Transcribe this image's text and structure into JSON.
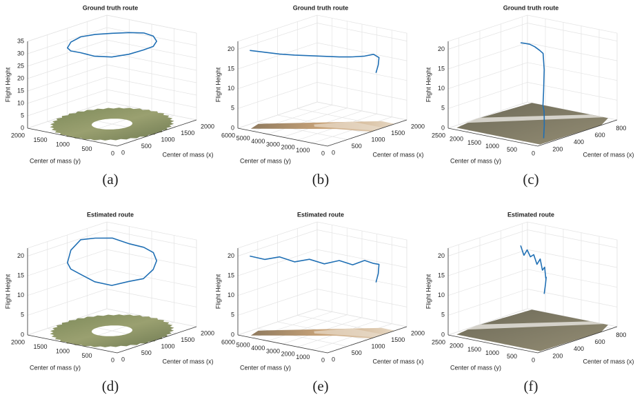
{
  "chart_data": [
    {
      "type": "line3d",
      "title": "Ground truth route",
      "caption": "(a)",
      "xlabel": "Center of mass (x)",
      "ylabel": "Center of mass (y)",
      "zlabel": "Flight Height",
      "color": "#1f6fb4",
      "grid": true,
      "xlim": [
        0,
        2000
      ],
      "xticks": [
        0,
        500,
        1000,
        1500,
        2000
      ],
      "ylim": [
        0,
        2000
      ],
      "yticks": [
        0,
        500,
        1000,
        1500,
        2000
      ],
      "zlim": [
        0,
        35
      ],
      "zticks": [
        0,
        5,
        10,
        15,
        20,
        25,
        30,
        35
      ],
      "x": [
        1800,
        1739,
        1566,
        1306,
        1000,
        694,
        434,
        261,
        200,
        261,
        434,
        694,
        1000,
        1306,
        1566,
        1739,
        1800
      ],
      "y": [
        1000,
        1268,
        1495,
        1647,
        1700,
        1647,
        1495,
        1268,
        1000,
        732,
        505,
        353,
        300,
        353,
        505,
        732,
        1000
      ],
      "z": [
        32.5,
        32.0,
        31.8,
        32.2,
        32.6,
        32.3,
        31.9,
        32.4,
        33.0,
        32.2,
        31.8,
        32.1,
        32.4,
        32.0,
        32.2,
        32.5,
        32.5
      ]
    },
    {
      "type": "line3d",
      "title": "Ground truth route",
      "caption": "(b)",
      "xlabel": "Center of mass (x)",
      "ylabel": "Center of mass (y)",
      "zlabel": "Flight Height",
      "color": "#1f6fb4",
      "grid": true,
      "xlim": [
        0,
        2000
      ],
      "xticks": [
        0,
        500,
        1000,
        1500,
        2000
      ],
      "ylim": [
        0,
        6000
      ],
      "yticks": [
        0,
        1000,
        2000,
        3000,
        4000,
        5000,
        6000
      ],
      "zlim": [
        0,
        22
      ],
      "zticks": [
        0,
        5,
        10,
        15,
        20
      ],
      "x": [
        150,
        300,
        450,
        600,
        750,
        900,
        1050,
        1200,
        1350,
        1500,
        1600,
        1620,
        1600
      ],
      "y": [
        5600,
        5000,
        4400,
        3800,
        3200,
        2600,
        2000,
        1500,
        1100,
        900,
        800,
        900,
        1000
      ],
      "z": [
        19.5,
        19,
        18.5,
        18.2,
        18,
        17.8,
        17.6,
        17.5,
        17.5,
        17.6,
        16.5,
        14.5,
        12.5
      ]
    },
    {
      "type": "line3d",
      "title": "Ground truth route",
      "caption": "(c)",
      "xlabel": "Center of mass (x)",
      "ylabel": "Center of mass (y)",
      "zlabel": "Flight Height",
      "color": "#1f6fb4",
      "grid": true,
      "xlim": [
        100,
        850
      ],
      "xticks": [
        200,
        400,
        600,
        800
      ],
      "ylim": [
        0,
        2500
      ],
      "yticks": [
        0,
        500,
        1000,
        1500,
        2000,
        2500
      ],
      "zlim": [
        0,
        22
      ],
      "zticks": [
        0,
        5,
        10,
        15,
        20
      ],
      "x": [
        650,
        620,
        600,
        580,
        560,
        540,
        500,
        460,
        420,
        380,
        330,
        280,
        240
      ],
      "y": [
        2100,
        1900,
        1700,
        1500,
        1300,
        1150,
        1000,
        900,
        800,
        650,
        500,
        350,
        250
      ],
      "z": [
        17.5,
        18,
        18.3,
        18.2,
        17.8,
        17.5,
        14,
        9,
        6,
        5.2,
        4.5,
        3,
        0.3
      ]
    },
    {
      "type": "line3d",
      "title": "Estimated route",
      "caption": "(d)",
      "xlabel": "Center of mass (x)",
      "ylabel": "Center of mass (y)",
      "zlabel": "Flight Height",
      "color": "#1f6fb4",
      "grid": true,
      "xlim": [
        0,
        2000
      ],
      "xticks": [
        0,
        500,
        1000,
        1500,
        2000
      ],
      "ylim": [
        0,
        2000
      ],
      "yticks": [
        0,
        500,
        1000,
        1500,
        2000
      ],
      "zlim": [
        0,
        22
      ],
      "zticks": [
        0,
        5,
        10,
        15,
        20
      ],
      "x": [
        1800,
        1739,
        1566,
        1306,
        1000,
        694,
        434,
        261,
        200,
        261,
        434,
        694,
        1000,
        1306,
        1566,
        1739,
        1800
      ],
      "y": [
        1000,
        1268,
        1495,
        1647,
        1700,
        1647,
        1495,
        1268,
        1000,
        732,
        505,
        353,
        300,
        353,
        505,
        732,
        1000
      ],
      "z": [
        18.5,
        19,
        20.5,
        21,
        21.5,
        20,
        18,
        17.5,
        17,
        15.5,
        14.5,
        15,
        14.8,
        16,
        17,
        18,
        18.5
      ]
    },
    {
      "type": "line3d",
      "title": "Estimated route",
      "caption": "(e)",
      "xlabel": "Center of mass (x)",
      "ylabel": "Center of mass (y)",
      "zlabel": "Flight Height",
      "color": "#1f6fb4",
      "grid": true,
      "xlim": [
        0,
        2000
      ],
      "xticks": [
        0,
        500,
        1000,
        1500,
        2000
      ],
      "ylim": [
        0,
        6000
      ],
      "yticks": [
        0,
        1000,
        2000,
        3000,
        4000,
        5000,
        6000
      ],
      "zlim": [
        0,
        22
      ],
      "zticks": [
        0,
        5,
        10,
        15,
        20
      ],
      "x": [
        150,
        300,
        450,
        600,
        750,
        900,
        1050,
        1200,
        1350,
        1500,
        1600,
        1620,
        1600
      ],
      "y": [
        5600,
        5000,
        4400,
        3800,
        3200,
        2600,
        2000,
        1500,
        1100,
        900,
        800,
        900,
        1000
      ],
      "z": [
        19.8,
        18.9,
        19.5,
        18.2,
        18.8,
        17.6,
        18.4,
        17.2,
        18.1,
        17,
        16.5,
        14,
        11.8
      ]
    },
    {
      "type": "line3d",
      "title": "Estimated route",
      "caption": "(f)",
      "xlabel": "Center of mass (x)",
      "ylabel": "Center of mass (y)",
      "zlabel": "Flight Height",
      "color": "#1f6fb4",
      "grid": true,
      "xlim": [
        100,
        850
      ],
      "xticks": [
        200,
        400,
        600,
        800
      ],
      "ylim": [
        0,
        2500
      ],
      "yticks": [
        0,
        500,
        1000,
        1500,
        2000,
        2500
      ],
      "zlim": [
        0,
        22
      ],
      "zticks": [
        0,
        5,
        10,
        15,
        20
      ],
      "x": [
        650,
        630,
        610,
        590,
        570,
        550,
        530,
        500,
        470,
        440,
        410,
        370,
        330
      ],
      "y": [
        2100,
        1950,
        1800,
        1650,
        1500,
        1350,
        1200,
        1050,
        900,
        780,
        680,
        580,
        500
      ],
      "z": [
        18.5,
        16.5,
        18.3,
        17,
        18,
        16,
        17.8,
        15.5,
        16.8,
        14.5,
        15.2,
        14,
        12
      ]
    }
  ]
}
